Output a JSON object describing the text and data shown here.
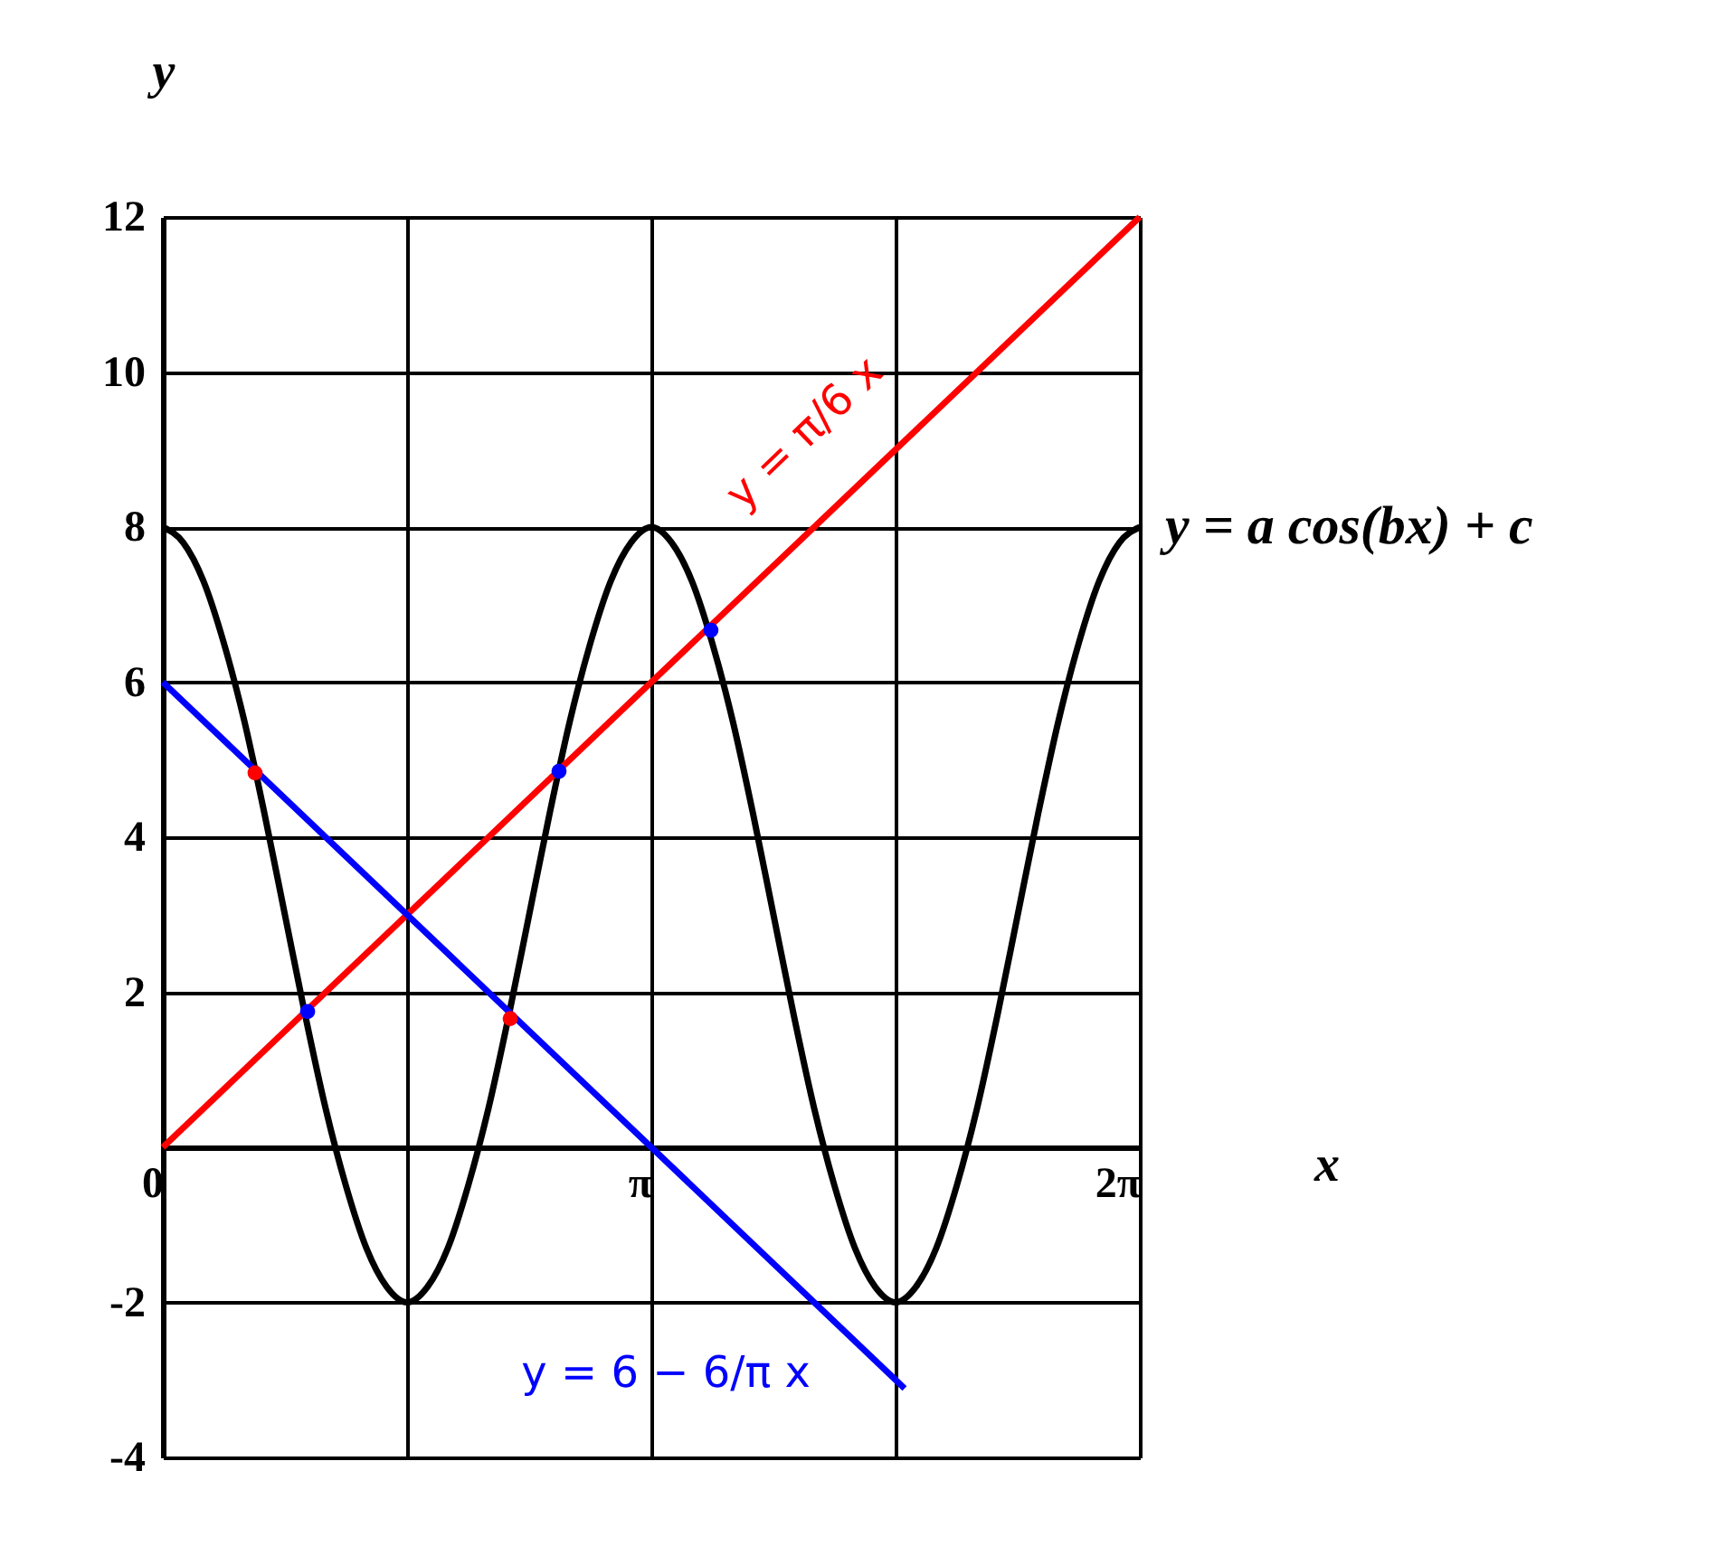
{
  "chart_data": {
    "type": "line",
    "xlabel": "x",
    "ylabel": "y",
    "xlim": [
      0,
      6.283
    ],
    "ylim": [
      -4,
      12
    ],
    "xticks": [
      {
        "value": 0,
        "label": "0"
      },
      {
        "value": 1.571,
        "label": null
      },
      {
        "value": 3.142,
        "label": "π"
      },
      {
        "value": 4.712,
        "label": null
      },
      {
        "value": 6.283,
        "label": "2π"
      }
    ],
    "yticks": [
      -4,
      -2,
      2,
      4,
      6,
      8,
      10,
      12
    ],
    "grid": true,
    "series": [
      {
        "color": "#000000",
        "x": [
          0,
          0.131,
          0.262,
          0.393,
          0.524,
          0.654,
          0.785,
          0.916,
          1.047,
          1.178,
          1.309,
          1.44,
          1.571,
          1.702,
          1.833,
          1.963,
          2.094,
          2.225,
          2.356,
          2.487,
          2.618,
          2.749,
          2.88,
          3.011,
          3.142,
          3.272,
          3.403,
          3.534,
          3.665,
          3.796,
          3.927,
          4.058,
          4.189,
          4.32,
          4.451,
          4.581,
          4.712,
          4.843,
          4.974,
          5.105,
          5.236,
          5.367,
          5.498,
          5.629,
          5.76,
          5.89,
          6.021,
          6.152,
          6.283
        ],
        "values": [
          8,
          7.8,
          7.3,
          6.5,
          5.5,
          4.3,
          3,
          1.7,
          0.5,
          -0.5,
          -1.3,
          -1.8,
          -2,
          -1.8,
          -1.3,
          -0.5,
          0.5,
          1.7,
          3,
          4.3,
          5.5,
          6.5,
          7.3,
          7.8,
          8,
          7.8,
          7.3,
          6.5,
          5.5,
          4.3,
          3,
          1.7,
          0.5,
          -0.5,
          -1.3,
          -1.8,
          -2,
          -1.8,
          -1.3,
          -0.5,
          0.5,
          1.7,
          3,
          4.3,
          5.5,
          6.5,
          7.3,
          7.8,
          8
        ]
      },
      {
        "type": "line",
        "color": "#ff0000",
        "x": [
          0,
          6.283
        ],
        "values": [
          0,
          12
        ]
      },
      {
        "type": "line",
        "color": "#0000ff",
        "x": [
          0,
          4.77
        ],
        "values": [
          6,
          -3.11
        ]
      },
      {
        "type": "scatter",
        "color": "#ff0000",
        "marker": "circle",
        "x": [
          0.593,
          2.234
        ],
        "values": [
          4.83,
          1.66
        ]
      },
      {
        "type": "scatter",
        "color": "#0000ff",
        "marker": "circle",
        "x": [
          0.931,
          2.548,
          3.525
        ],
        "values": [
          1.75,
          4.85,
          6.67
        ]
      }
    ],
    "annotations": [
      {
        "text": "y = a cos(bx) + c",
        "x": 6.283,
        "y": 8
      },
      "y = π/6 x",
      "y = 6 − 6/π x"
    ]
  }
}
